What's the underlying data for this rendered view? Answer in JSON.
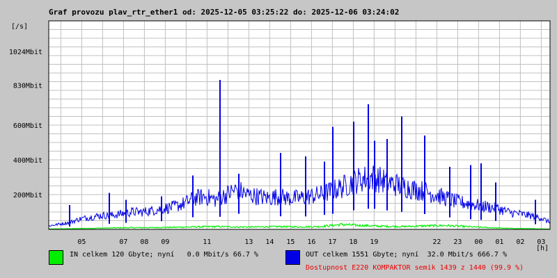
{
  "title": "Graf provozu plav_rtr_ether1 od: 2025-12-05 03:25:22 do: 2025-12-06 03:24:02",
  "colors": {
    "background": "#c6c6c6",
    "plot_background": "#ffffff",
    "grid": "#c0c0c0",
    "in_series": "#00ee00",
    "out_series": "#0000e6",
    "availability_text": "#ee0000"
  },
  "legend": {
    "in_text": "IN celkem 120 Gbyte; nyní   0.0 Mbit/s 66.7 %",
    "out_text": "OUT celkem 1551 Gbyte; nyní  32.0 Mbit/s 666.7 %",
    "availability": "Dostupnost E220 KOMPAKTOR semik 1439 z 1440 (99.9 %)"
  },
  "chart_data": {
    "type": "line",
    "y_unit_label": "[/s]",
    "x_unit_label": "[h]",
    "ylim_mbit": [
      0,
      1200
    ],
    "y_ticks": [
      {
        "value": 200,
        "label": "200Mbit"
      },
      {
        "value": 400,
        "label": "400Mbit"
      },
      {
        "value": 600,
        "label": "600Mbit"
      },
      {
        "value": 830,
        "label": "830Mbit"
      },
      {
        "value": 1024,
        "label": "1024Mbit"
      }
    ],
    "x_range_hours": [
      0,
      24
    ],
    "x_ticks": [
      {
        "hour": 1.58,
        "label": "05"
      },
      {
        "hour": 3.58,
        "label": "07"
      },
      {
        "hour": 4.58,
        "label": "08"
      },
      {
        "hour": 5.58,
        "label": "09"
      },
      {
        "hour": 7.58,
        "label": "11"
      },
      {
        "hour": 9.58,
        "label": "13"
      },
      {
        "hour": 10.58,
        "label": "14"
      },
      {
        "hour": 11.58,
        "label": "15"
      },
      {
        "hour": 12.58,
        "label": "16"
      },
      {
        "hour": 13.58,
        "label": "17"
      },
      {
        "hour": 14.58,
        "label": "18"
      },
      {
        "hour": 15.58,
        "label": "19"
      },
      {
        "hour": 18.58,
        "label": "22"
      },
      {
        "hour": 19.58,
        "label": "23"
      },
      {
        "hour": 20.58,
        "label": "00"
      },
      {
        "hour": 21.58,
        "label": "01"
      },
      {
        "hour": 22.58,
        "label": "02"
      },
      {
        "hour": 23.58,
        "label": "03"
      }
    ],
    "grid": true,
    "series": [
      {
        "key": "in",
        "x_hours": [
          0,
          1,
          2,
          3,
          4,
          5,
          6,
          7,
          8,
          9,
          10,
          11,
          12,
          13,
          14,
          14.5,
          15,
          16,
          17,
          18,
          19,
          20,
          21,
          22,
          23,
          24
        ],
        "values_mbit": [
          2,
          4,
          6,
          8,
          10,
          10,
          12,
          14,
          16,
          14,
          14,
          16,
          14,
          16,
          28,
          25,
          22,
          18,
          16,
          20,
          22,
          16,
          10,
          6,
          4,
          2
        ]
      },
      {
        "key": "out",
        "x_hours": [
          0,
          0.5,
          1,
          1.5,
          2,
          2.5,
          3,
          3.5,
          4,
          4.5,
          5,
          5.5,
          6,
          6.5,
          7,
          7.5,
          8,
          8.5,
          9,
          9.5,
          10,
          10.5,
          11,
          11.5,
          12,
          12.5,
          13,
          13.5,
          14,
          14.5,
          15,
          15.5,
          16,
          16.5,
          17,
          17.5,
          18,
          18.5,
          19,
          19.5,
          20,
          20.5,
          21,
          21.5,
          22,
          22.5,
          23,
          23.5,
          24
        ],
        "values_mbit": [
          20,
          30,
          40,
          60,
          70,
          80,
          80,
          90,
          100,
          100,
          110,
          120,
          130,
          150,
          180,
          190,
          170,
          200,
          230,
          200,
          190,
          180,
          190,
          180,
          180,
          190,
          200,
          220,
          240,
          270,
          290,
          300,
          280,
          260,
          250,
          230,
          220,
          200,
          180,
          160,
          150,
          140,
          130,
          120,
          100,
          90,
          80,
          70,
          40
        ]
      }
    ],
    "out_spikes": [
      {
        "hour": 1.0,
        "value_mbit": 140
      },
      {
        "hour": 2.9,
        "value_mbit": 210
      },
      {
        "hour": 3.7,
        "value_mbit": 170
      },
      {
        "hour": 5.4,
        "value_mbit": 190
      },
      {
        "hour": 6.9,
        "value_mbit": 310
      },
      {
        "hour": 8.2,
        "value_mbit": 860
      },
      {
        "hour": 8.2,
        "value_mbit": 340
      },
      {
        "hour": 9.1,
        "value_mbit": 320
      },
      {
        "hour": 11.1,
        "value_mbit": 440
      },
      {
        "hour": 12.3,
        "value_mbit": 420
      },
      {
        "hour": 13.2,
        "value_mbit": 390
      },
      {
        "hour": 13.6,
        "value_mbit": 590
      },
      {
        "hour": 14.6,
        "value_mbit": 620
      },
      {
        "hour": 15.3,
        "value_mbit": 720
      },
      {
        "hour": 15.6,
        "value_mbit": 510
      },
      {
        "hour": 16.2,
        "value_mbit": 520
      },
      {
        "hour": 16.9,
        "value_mbit": 650
      },
      {
        "hour": 18.0,
        "value_mbit": 540
      },
      {
        "hour": 19.2,
        "value_mbit": 360
      },
      {
        "hour": 20.2,
        "value_mbit": 370
      },
      {
        "hour": 20.7,
        "value_mbit": 380
      },
      {
        "hour": 21.4,
        "value_mbit": 270
      },
      {
        "hour": 23.3,
        "value_mbit": 170
      }
    ]
  }
}
